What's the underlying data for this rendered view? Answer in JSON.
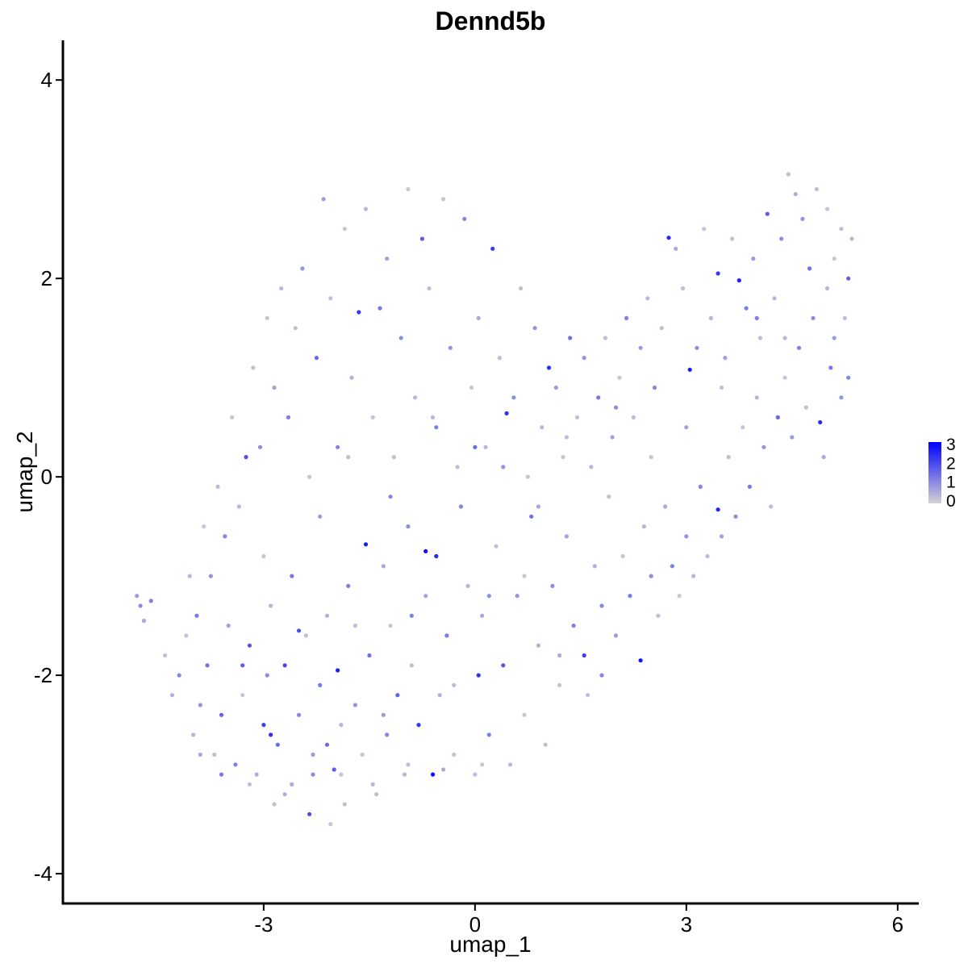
{
  "chart_data": {
    "type": "scatter",
    "title": "Dennd5b",
    "xlabel": "umap_1",
    "ylabel": "umap_2",
    "xlim": [
      -5.85,
      6.3
    ],
    "ylim": [
      -4.3,
      4.4
    ],
    "xticks": [
      -3,
      0,
      3,
      6
    ],
    "xtick_labels": [
      "-3",
      "0",
      "3",
      "6"
    ],
    "yticks": [
      -4,
      -2,
      0,
      2,
      4
    ],
    "ytick_labels": [
      "-4",
      "-2",
      "0",
      "2",
      "4"
    ],
    "grid": false,
    "legend": {
      "position": "right",
      "type": "color-gradient",
      "min": 0,
      "max": 3,
      "ticks": [
        0,
        1,
        2,
        3
      ],
      "tick_labels": [
        "0",
        "1",
        "2",
        "3"
      ],
      "low_color": "#d3d3d3",
      "high_color": "#0000ff"
    },
    "expression_color_low": "#d3d3d3",
    "expression_color_high": "#0000ff",
    "points": [
      [
        -4.8,
        -1.2,
        0.8
      ],
      [
        -4.75,
        -1.3,
        1.0
      ],
      [
        -4.7,
        -1.45,
        0.6
      ],
      [
        -4.6,
        -1.25,
        1.2
      ],
      [
        -4.4,
        -1.8,
        0.3
      ],
      [
        -4.3,
        -2.2,
        0.5
      ],
      [
        -4.2,
        -2.0,
        1.1
      ],
      [
        -4.1,
        -1.6,
        0.2
      ],
      [
        -4.0,
        -2.6,
        0.4
      ],
      [
        -3.9,
        -2.3,
        0.9
      ],
      [
        -3.8,
        -1.9,
        1.4
      ],
      [
        -3.7,
        -2.8,
        0.3
      ],
      [
        -3.6,
        -2.4,
        1.6
      ],
      [
        -3.5,
        -1.5,
        0.7
      ],
      [
        -3.4,
        -2.9,
        1.2
      ],
      [
        -3.3,
        -2.2,
        0.2
      ],
      [
        -3.2,
        -1.7,
        1.8
      ],
      [
        -3.1,
        -3.0,
        0.5
      ],
      [
        -3.0,
        -2.5,
        2.1
      ],
      [
        -2.95,
        -2.0,
        1.0
      ],
      [
        -2.9,
        -1.3,
        0.4
      ],
      [
        -2.85,
        -3.3,
        0.3
      ],
      [
        -2.8,
        -2.7,
        1.5
      ],
      [
        -2.7,
        -1.9,
        2.0
      ],
      [
        -2.6,
        -3.1,
        0.6
      ],
      [
        -2.5,
        -2.4,
        1.1
      ],
      [
        -2.4,
        -1.6,
        0.3
      ],
      [
        -2.35,
        -3.4,
        1.9
      ],
      [
        -2.3,
        -2.8,
        0.8
      ],
      [
        -2.2,
        -2.1,
        1.3
      ],
      [
        -2.1,
        -1.4,
        0.5
      ],
      [
        -2.05,
        -3.5,
        0.2
      ],
      [
        -2.0,
        -2.95,
        1.7
      ],
      [
        -1.95,
        -1.95,
        2.6
      ],
      [
        -1.9,
        -2.5,
        0.4
      ],
      [
        -1.85,
        -3.3,
        0.3
      ],
      [
        -1.8,
        -1.1,
        1.2
      ],
      [
        -1.7,
        -2.3,
        0.9
      ],
      [
        -1.6,
        -2.8,
        0.2
      ],
      [
        -1.5,
        -1.8,
        1.4
      ],
      [
        -1.4,
        -3.2,
        0.3
      ],
      [
        -1.3,
        -0.9,
        0.6
      ],
      [
        -1.25,
        -2.6,
        1.1
      ],
      [
        -1.2,
        -1.5,
        0.2
      ],
      [
        -1.1,
        -2.2,
        1.6
      ],
      [
        -1.0,
        -3.0,
        0.4
      ],
      [
        -0.95,
        -0.5,
        1.0
      ],
      [
        -0.9,
        -1.9,
        0.3
      ],
      [
        -0.8,
        -2.5,
        2.2
      ],
      [
        -0.7,
        -1.2,
        0.7
      ],
      [
        -0.6,
        -3.0,
        2.9
      ],
      [
        -0.55,
        -0.8,
        2.4
      ],
      [
        -0.5,
        -2.2,
        0.5
      ],
      [
        -0.4,
        -1.6,
        1.3
      ],
      [
        -0.3,
        -2.8,
        0.2
      ],
      [
        -0.2,
        -0.3,
        1.1
      ],
      [
        -0.1,
        -1.1,
        0.4
      ],
      [
        0.0,
        -3.0,
        0.3
      ],
      [
        0.05,
        -2.0,
        2.3
      ],
      [
        0.1,
        -1.4,
        0.6
      ],
      [
        0.2,
        -2.6,
        1.2
      ],
      [
        0.3,
        -0.7,
        0.3
      ],
      [
        0.4,
        -1.9,
        1.8
      ],
      [
        0.5,
        -2.9,
        0.4
      ],
      [
        0.6,
        -1.2,
        0.9
      ],
      [
        0.7,
        -2.4,
        0.2
      ],
      [
        0.8,
        -0.4,
        1.4
      ],
      [
        0.9,
        -1.7,
        0.5
      ],
      [
        1.0,
        -2.7,
        0.3
      ],
      [
        1.1,
        -1.1,
        1.0
      ],
      [
        1.2,
        -2.1,
        0.2
      ],
      [
        1.3,
        -0.6,
        0.7
      ],
      [
        1.4,
        -1.5,
        1.2
      ],
      [
        1.55,
        -1.8,
        2.1
      ],
      [
        1.6,
        -2.2,
        0.3
      ],
      [
        1.7,
        -0.9,
        0.5
      ],
      [
        1.8,
        -1.3,
        1.1
      ],
      [
        1.9,
        -0.2,
        0.3
      ],
      [
        2.0,
        -1.6,
        0.8
      ],
      [
        2.1,
        -0.8,
        0.2
      ],
      [
        2.2,
        -1.2,
        1.3
      ],
      [
        2.35,
        -1.85,
        2.7
      ],
      [
        2.4,
        -0.5,
        0.4
      ],
      [
        2.5,
        -1.0,
        1.0
      ],
      [
        2.6,
        -1.4,
        0.3
      ],
      [
        2.7,
        -0.3,
        0.6
      ],
      [
        2.8,
        -0.9,
        1.2
      ],
      [
        2.9,
        -1.2,
        0.2
      ],
      [
        3.0,
        -0.6,
        0.9
      ],
      [
        3.1,
        -1.0,
        0.4
      ],
      [
        3.2,
        -0.1,
        1.1
      ],
      [
        3.3,
        -0.8,
        0.3
      ],
      [
        3.45,
        -0.33,
        2.5
      ],
      [
        3.5,
        -0.6,
        0.7
      ],
      [
        3.6,
        0.2,
        0.3
      ],
      [
        3.7,
        -0.4,
        1.0
      ],
      [
        3.8,
        0.5,
        0.2
      ],
      [
        3.9,
        -0.1,
        1.3
      ],
      [
        4.0,
        0.8,
        0.4
      ],
      [
        4.1,
        0.3,
        0.9
      ],
      [
        4.2,
        -0.3,
        0.3
      ],
      [
        4.3,
        0.6,
        1.5
      ],
      [
        4.4,
        1.0,
        0.2
      ],
      [
        4.5,
        0.4,
        0.8
      ],
      [
        4.6,
        1.3,
        1.2
      ],
      [
        4.7,
        0.7,
        0.3
      ],
      [
        4.8,
        1.6,
        1.0
      ],
      [
        4.9,
        0.55,
        2.4
      ],
      [
        5.0,
        1.9,
        0.4
      ],
      [
        5.05,
        1.1,
        1.3
      ],
      [
        5.1,
        2.2,
        0.2
      ],
      [
        5.2,
        0.8,
        0.9
      ],
      [
        5.25,
        1.6,
        0.3
      ],
      [
        5.3,
        2.0,
        1.6
      ],
      [
        5.35,
        2.4,
        0.4
      ],
      [
        5.3,
        1.0,
        1.1
      ],
      [
        5.2,
        2.5,
        0.3
      ],
      [
        5.1,
        1.4,
        0.8
      ],
      [
        5.0,
        2.7,
        0.2
      ],
      [
        4.95,
        0.2,
        0.6
      ],
      [
        4.85,
        2.9,
        0.3
      ],
      [
        4.75,
        2.1,
        1.4
      ],
      [
        4.65,
        2.6,
        0.9
      ],
      [
        4.55,
        2.85,
        0.5
      ],
      [
        4.45,
        3.05,
        0.3
      ],
      [
        4.35,
        2.4,
        1.0
      ],
      [
        4.25,
        1.8,
        0.4
      ],
      [
        4.15,
        2.65,
        1.7
      ],
      [
        4.05,
        1.4,
        0.3
      ],
      [
        3.95,
        2.2,
        0.8
      ],
      [
        3.85,
        1.7,
        1.2
      ],
      [
        3.75,
        1.98,
        2.5
      ],
      [
        3.65,
        2.4,
        0.3
      ],
      [
        3.55,
        1.2,
        0.7
      ],
      [
        3.45,
        2.05,
        2.2
      ],
      [
        3.35,
        1.6,
        0.4
      ],
      [
        3.25,
        2.5,
        0.2
      ],
      [
        3.15,
        1.3,
        1.0
      ],
      [
        3.05,
        1.08,
        2.6
      ],
      [
        2.95,
        1.9,
        0.3
      ],
      [
        2.85,
        2.3,
        0.6
      ],
      [
        2.75,
        2.41,
        2.4
      ],
      [
        2.65,
        1.5,
        0.3
      ],
      [
        2.55,
        0.9,
        1.1
      ],
      [
        2.45,
        1.8,
        0.4
      ],
      [
        2.35,
        1.3,
        0.8
      ],
      [
        2.25,
        0.6,
        0.3
      ],
      [
        2.15,
        1.6,
        1.2
      ],
      [
        2.05,
        1.0,
        0.2
      ],
      [
        1.95,
        0.4,
        0.7
      ],
      [
        1.85,
        1.4,
        0.3
      ],
      [
        1.75,
        0.8,
        1.3
      ],
      [
        1.65,
        0.1,
        0.4
      ],
      [
        1.55,
        1.2,
        0.9
      ],
      [
        1.45,
        0.6,
        0.3
      ],
      [
        1.35,
        1.4,
        1.4
      ],
      [
        1.25,
        0.2,
        0.2
      ],
      [
        1.15,
        0.9,
        0.8
      ],
      [
        1.05,
        1.1,
        2.3
      ],
      [
        0.95,
        0.5,
        0.4
      ],
      [
        0.85,
        1.5,
        0.9
      ],
      [
        0.75,
        0.0,
        0.2
      ],
      [
        0.65,
        1.9,
        0.3
      ],
      [
        0.55,
        0.8,
        1.0
      ],
      [
        0.45,
        0.64,
        2.3
      ],
      [
        0.35,
        1.2,
        0.3
      ],
      [
        0.25,
        2.3,
        2.2
      ],
      [
        0.15,
        0.3,
        0.4
      ],
      [
        0.05,
        1.6,
        0.6
      ],
      [
        -0.05,
        0.9,
        0.2
      ],
      [
        -0.15,
        2.6,
        1.1
      ],
      [
        -0.25,
        0.1,
        0.3
      ],
      [
        -0.35,
        1.3,
        0.9
      ],
      [
        -0.45,
        2.8,
        0.2
      ],
      [
        -0.55,
        0.5,
        1.2
      ],
      [
        -0.65,
        1.9,
        0.3
      ],
      [
        -0.75,
        2.4,
        1.7
      ],
      [
        -0.85,
        0.8,
        0.4
      ],
      [
        -0.95,
        2.9,
        0.2
      ],
      [
        -1.05,
        1.4,
        1.0
      ],
      [
        -1.15,
        0.2,
        0.3
      ],
      [
        -1.25,
        2.2,
        0.7
      ],
      [
        -1.35,
        1.7,
        1.3
      ],
      [
        -1.45,
        0.6,
        0.2
      ],
      [
        -1.55,
        2.7,
        0.4
      ],
      [
        -1.65,
        1.66,
        2.2
      ],
      [
        -1.75,
        1.0,
        0.5
      ],
      [
        -1.85,
        2.5,
        0.2
      ],
      [
        -1.95,
        0.3,
        1.1
      ],
      [
        -2.05,
        1.8,
        0.3
      ],
      [
        -2.15,
        2.8,
        0.8
      ],
      [
        -2.25,
        1.2,
        1.5
      ],
      [
        -2.35,
        0.0,
        0.2
      ],
      [
        -2.45,
        2.1,
        0.9
      ],
      [
        -2.55,
        1.5,
        0.3
      ],
      [
        -2.65,
        0.6,
        1.2
      ],
      [
        -2.75,
        1.9,
        0.4
      ],
      [
        -2.85,
        0.9,
        0.7
      ],
      [
        -2.95,
        1.6,
        0.2
      ],
      [
        -3.05,
        0.3,
        1.0
      ],
      [
        -3.15,
        1.1,
        0.3
      ],
      [
        -3.25,
        0.2,
        1.9
      ],
      [
        -3.35,
        -0.3,
        0.4
      ],
      [
        -3.45,
        0.6,
        0.2
      ],
      [
        -3.55,
        -0.6,
        1.1
      ],
      [
        -3.65,
        -0.1,
        0.3
      ],
      [
        -3.75,
        -1.0,
        0.9
      ],
      [
        -3.85,
        -0.5,
        0.2
      ],
      [
        -3.95,
        -1.4,
        1.3
      ],
      [
        -4.05,
        -1.0,
        0.4
      ],
      [
        -1.55,
        -0.68,
        2.6
      ],
      [
        -0.7,
        -0.75,
        2.8
      ],
      [
        0.0,
        0.3,
        1.5
      ],
      [
        0.9,
        -0.3,
        0.6
      ],
      [
        -2.6,
        -1.0,
        1.3
      ],
      [
        -3.0,
        -0.8,
        0.2
      ],
      [
        -2.2,
        -0.4,
        0.8
      ],
      [
        -1.8,
        0.2,
        0.3
      ],
      [
        -1.2,
        -0.2,
        1.1
      ],
      [
        -0.6,
        0.6,
        0.4
      ],
      [
        0.4,
        0.1,
        0.9
      ],
      [
        1.3,
        0.4,
        0.3
      ],
      [
        2.0,
        0.7,
        1.0
      ],
      [
        2.5,
        0.2,
        0.2
      ],
      [
        3.0,
        0.5,
        0.7
      ],
      [
        3.5,
        0.9,
        0.3
      ],
      [
        4.0,
        1.6,
        1.2
      ],
      [
        4.4,
        1.4,
        0.4
      ],
      [
        -3.3,
        -1.9,
        1.7
      ],
      [
        -2.9,
        -2.6,
        2.3
      ],
      [
        -2.5,
        -1.55,
        1.9
      ],
      [
        -2.1,
        -2.7,
        1.5
      ],
      [
        -1.7,
        -1.5,
        0.3
      ],
      [
        -1.3,
        -2.4,
        0.8
      ],
      [
        -0.9,
        -1.4,
        1.2
      ],
      [
        -0.3,
        -2.1,
        0.3
      ],
      [
        0.2,
        -1.2,
        1.0
      ],
      [
        0.7,
        -1.0,
        0.2
      ],
      [
        1.2,
        -1.8,
        0.6
      ],
      [
        1.8,
        -2.0,
        1.1
      ],
      [
        -3.9,
        -2.8,
        0.6
      ],
      [
        -3.6,
        -3.0,
        1.3
      ],
      [
        -3.2,
        -3.1,
        0.3
      ],
      [
        -2.7,
        -3.2,
        0.5
      ],
      [
        -2.3,
        -3.0,
        1.0
      ],
      [
        -1.9,
        -3.0,
        0.2
      ],
      [
        -1.45,
        -3.1,
        0.4
      ],
      [
        -0.95,
        -2.9,
        0.3
      ],
      [
        -0.45,
        -2.95,
        0.6
      ],
      [
        0.1,
        -2.9,
        0.2
      ]
    ]
  }
}
